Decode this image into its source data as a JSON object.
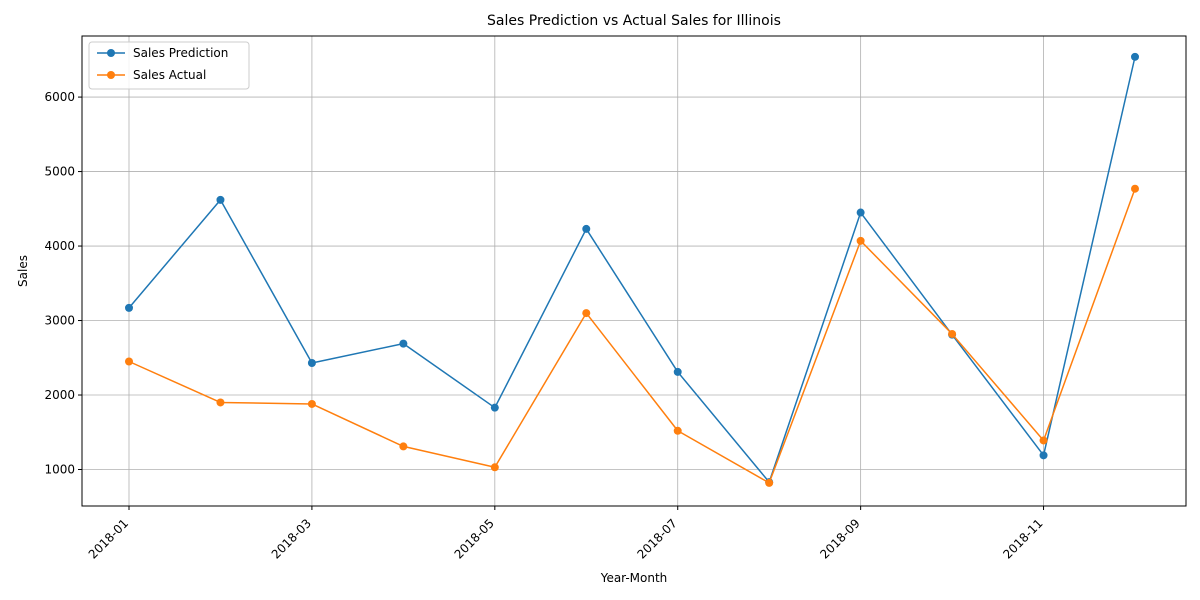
{
  "chart_data": {
    "type": "line",
    "title": "Sales Prediction vs Actual Sales for Illinois",
    "xlabel": "Year-Month",
    "ylabel": "Sales",
    "x": [
      "2018-01",
      "2018-02",
      "2018-03",
      "2018-04",
      "2018-05",
      "2018-06",
      "2018-07",
      "2018-08",
      "2018-09",
      "2018-10",
      "2018-11",
      "2018-12"
    ],
    "x_tick_labels": [
      "2018-01",
      "2018-03",
      "2018-05",
      "2018-07",
      "2018-09",
      "2018-11"
    ],
    "y_ticks": [
      1000,
      2000,
      3000,
      4000,
      5000,
      6000
    ],
    "ylim": [
      510,
      6820
    ],
    "grid": true,
    "legend_position": "top-left",
    "series": [
      {
        "name": "Sales Prediction",
        "color": "#1f77b4",
        "values": [
          3170,
          4620,
          2430,
          2690,
          1830,
          4230,
          2310,
          830,
          4450,
          2810,
          1190,
          6540
        ]
      },
      {
        "name": "Sales Actual",
        "color": "#ff7f0e",
        "values": [
          2450,
          1900,
          1880,
          1310,
          1030,
          3100,
          1520,
          820,
          4070,
          2820,
          1390,
          4770
        ]
      }
    ]
  }
}
